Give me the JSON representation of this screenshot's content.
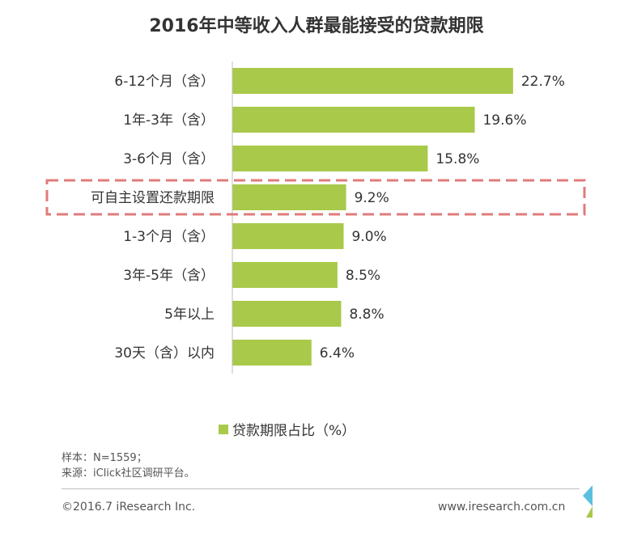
{
  "chart_data": {
    "type": "bar",
    "orientation": "horizontal",
    "title": "2016年中等收入人群最能接受的贷款期限",
    "categories": [
      "6-12个月（含）",
      "1年-3年（含）",
      "3-6个月（含）",
      "可自主设置还款期限",
      "1-3个月（含）",
      "3年-5年（含）",
      "5年以上",
      "30天（含）以内"
    ],
    "values": [
      22.7,
      19.6,
      15.8,
      9.2,
      9.0,
      8.5,
      8.8,
      6.4
    ],
    "value_labels": [
      "22.7%",
      "19.6%",
      "15.8%",
      "9.2%",
      "9.0%",
      "8.5%",
      "8.8%",
      "6.4%"
    ],
    "xlim": [
      0,
      25
    ],
    "highlight_index": 3,
    "legend": "贷款期限占比（%）"
  },
  "colors": {
    "bar": "#a9c94a",
    "highlight_border": "#e07b7b",
    "axis": "#bfbfbf"
  },
  "notes": {
    "sample": "样本：N=1559；",
    "source": "来源：iClick社区调研平台。"
  },
  "footer": {
    "copyright": "©2016.7 iResearch Inc.",
    "website": "www.iresearch.com.cn"
  }
}
